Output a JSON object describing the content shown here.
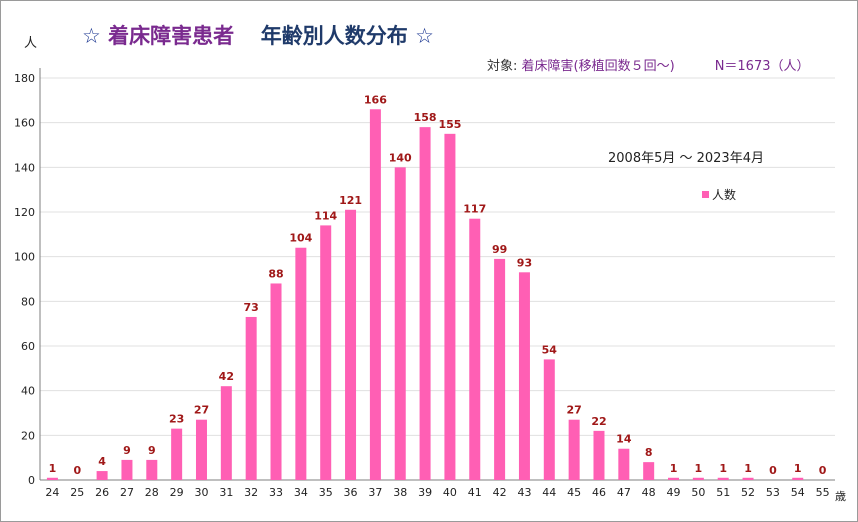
{
  "header": {
    "star": "☆",
    "title_a": "着床障害患者",
    "title_b": "年齢別人数分布",
    "unit_y": "人",
    "unit_x": "歳"
  },
  "subject": {
    "label": "対象: ",
    "value": "着床障害",
    "condition": "(移植回数５回～)",
    "n": "N＝1673（人）"
  },
  "period": "2008年5月 ～ 2023年4月",
  "legend": {
    "series": "人数"
  },
  "colors": {
    "bar": "#ff5fb4",
    "data_label": "#a01818",
    "grid": "#e0e0e0"
  },
  "chart_data": {
    "type": "bar",
    "categories": [
      "24",
      "25",
      "26",
      "27",
      "28",
      "29",
      "30",
      "31",
      "32",
      "33",
      "34",
      "35",
      "36",
      "37",
      "38",
      "39",
      "40",
      "41",
      "42",
      "43",
      "44",
      "45",
      "46",
      "47",
      "48",
      "49",
      "50",
      "51",
      "52",
      "53",
      "54",
      "55"
    ],
    "series": [
      {
        "name": "人数",
        "values": [
          1,
          0,
          4,
          9,
          9,
          23,
          27,
          42,
          73,
          88,
          104,
          114,
          121,
          166,
          140,
          158,
          155,
          117,
          99,
          93,
          54,
          27,
          22,
          14,
          8,
          1,
          1,
          1,
          1,
          0,
          1,
          0
        ]
      }
    ],
    "ylim": [
      0,
      180
    ],
    "yticks": [
      0,
      20,
      40,
      60,
      80,
      100,
      120,
      140,
      160,
      180
    ],
    "xlabel": "歳",
    "ylabel": "人",
    "grid": true,
    "legend_position": "right"
  }
}
